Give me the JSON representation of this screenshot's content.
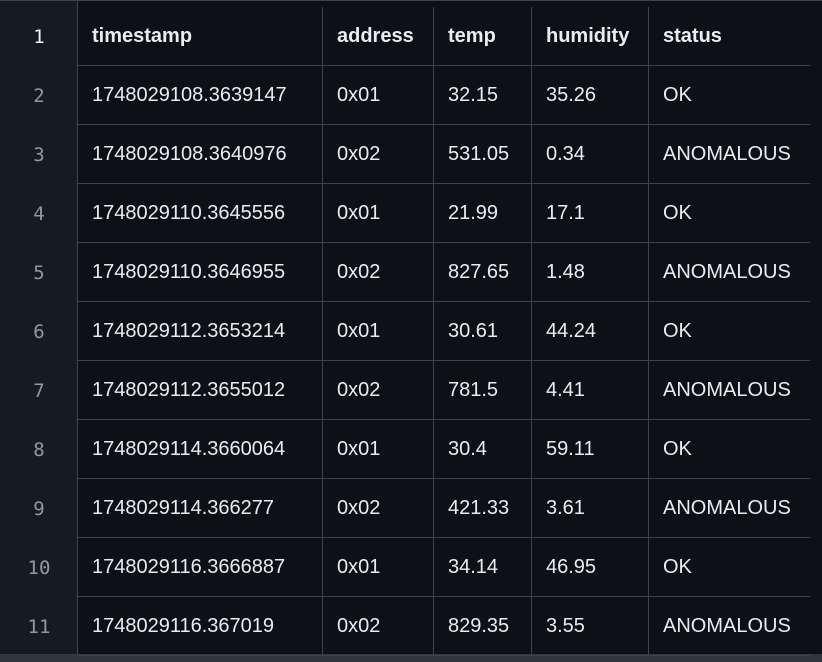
{
  "table": {
    "columns": [
      "timestamp",
      "address",
      "temp",
      "humidity",
      "status"
    ],
    "header_line": "1",
    "rows": [
      {
        "line": "2",
        "cells": [
          "1748029108.3639147",
          "0x01",
          "32.15",
          "35.26",
          "OK"
        ]
      },
      {
        "line": "3",
        "cells": [
          "1748029108.3640976",
          "0x02",
          "531.05",
          "0.34",
          "ANOMALOUS"
        ]
      },
      {
        "line": "4",
        "cells": [
          "1748029110.3645556",
          "0x01",
          "21.99",
          "17.1",
          "OK"
        ]
      },
      {
        "line": "5",
        "cells": [
          "1748029110.3646955",
          "0x02",
          "827.65",
          "1.48",
          "ANOMALOUS"
        ]
      },
      {
        "line": "6",
        "cells": [
          "1748029112.3653214",
          "0x01",
          "30.61",
          "44.24",
          "OK"
        ]
      },
      {
        "line": "7",
        "cells": [
          "1748029112.3655012",
          "0x02",
          "781.5",
          "4.41",
          "ANOMALOUS"
        ]
      },
      {
        "line": "8",
        "cells": [
          "1748029114.3660064",
          "0x01",
          "30.4",
          "59.11",
          "OK"
        ]
      },
      {
        "line": "9",
        "cells": [
          "1748029114.366277",
          "0x02",
          "421.33",
          "3.61",
          "ANOMALOUS"
        ]
      },
      {
        "line": "10",
        "cells": [
          "1748029116.3666887",
          "0x01",
          "34.14",
          "46.95",
          "OK"
        ]
      },
      {
        "line": "11",
        "cells": [
          "1748029116.367019",
          "0x02",
          "829.35",
          "3.55",
          "ANOMALOUS"
        ]
      }
    ]
  }
}
